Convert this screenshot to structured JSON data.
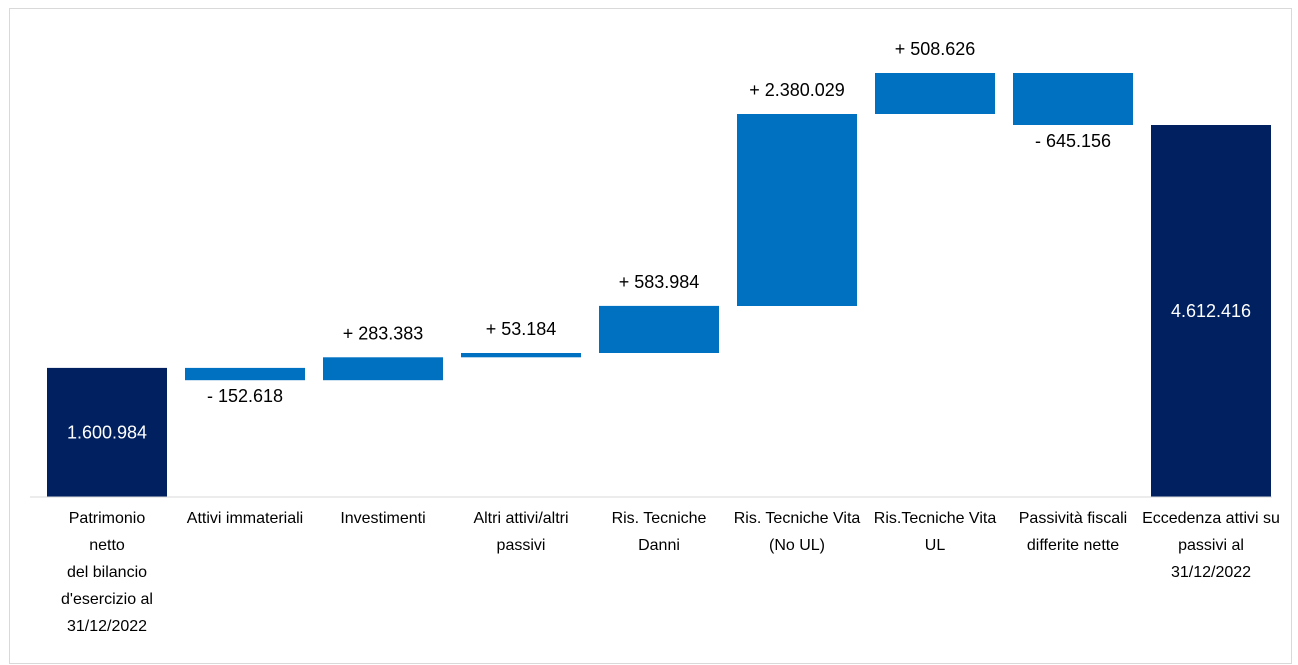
{
  "chart_data": {
    "type": "waterfall",
    "categories": [
      [
        "Patrimonio",
        "netto",
        "del bilancio",
        "d'esercizio al",
        "31/12/2022"
      ],
      [
        "Attivi immateriali"
      ],
      [
        "Investimenti"
      ],
      [
        "Altri attivi/altri",
        "passivi"
      ],
      [
        "Ris. Tecniche",
        "Danni"
      ],
      [
        "Ris. Tecniche Vita",
        "(No UL)"
      ],
      [
        "Ris.Tecniche Vita",
        "UL"
      ],
      [
        "Passività fiscali",
        "differite nette"
      ],
      [
        "Eccedenza attivi su",
        "passivi al",
        "31/12/2022"
      ]
    ],
    "kinds": [
      "total",
      "delta",
      "delta",
      "delta",
      "delta",
      "delta",
      "delta",
      "delta",
      "total"
    ],
    "values": [
      1600984,
      -152618,
      283383,
      53184,
      583984,
      2380029,
      508626,
      -645156,
      4612416
    ],
    "data_labels": [
      "1.600.984",
      "- 152.618",
      "+ 283.383",
      "+ 53.184",
      "+ 583.984",
      "+ 2.380.029",
      "+ 508.626",
      "- 645.156",
      "4.612.416"
    ],
    "ylim": [
      0,
      5400000
    ],
    "colors": {
      "total": "#002060",
      "delta": "#0070C0",
      "total_label": "#ffffff",
      "delta_label": "#000000",
      "axis": "#d9d9d9"
    }
  }
}
